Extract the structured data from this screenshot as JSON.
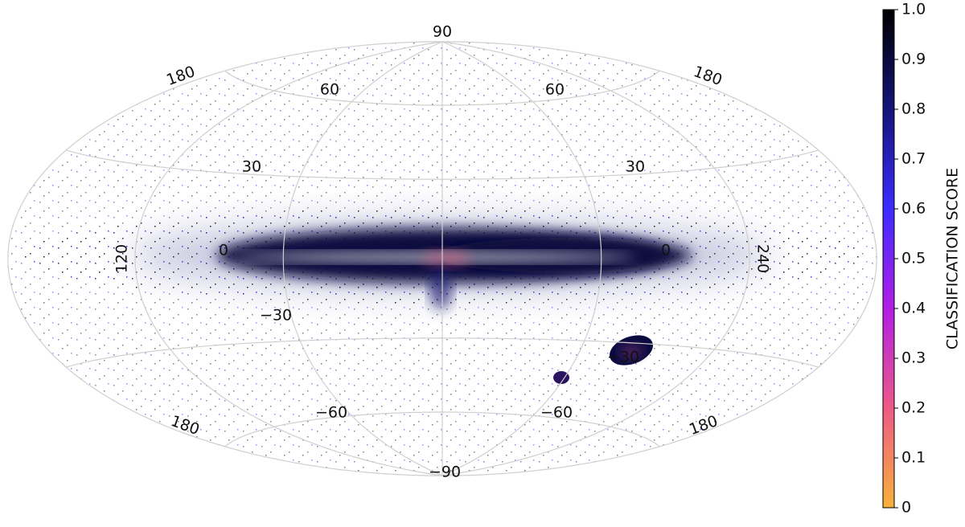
{
  "chart_data": {
    "type": "skymap",
    "projection": "hammer",
    "lat_labels": [
      90,
      60,
      60,
      30,
      30,
      {
        "value": -30,
        "label": "−30"
      },
      {
        "value": -30,
        "label": "−30"
      },
      {
        "value": -60,
        "label": "−60"
      },
      {
        "value": -60,
        "label": "−60"
      },
      {
        "value": -90,
        "label": "−90"
      }
    ],
    "lon_labels": [
      180,
      180,
      180,
      180,
      120,
      0,
      0,
      240
    ],
    "colorbar": {
      "label": "CLASSIFICATION SCORE",
      "lim": [
        0,
        1
      ],
      "ticks": [
        0,
        0.1,
        0.2,
        0.3,
        0.4,
        0.5,
        0.6,
        0.7,
        0.8,
        0.9,
        {
          "value": 1,
          "label": "1.0"
        }
      ],
      "colors": [
        "#f7b23b",
        "#ee5a86",
        "#b21ee6",
        "#3c2cff",
        "#14147a",
        "#000000"
      ]
    }
  }
}
